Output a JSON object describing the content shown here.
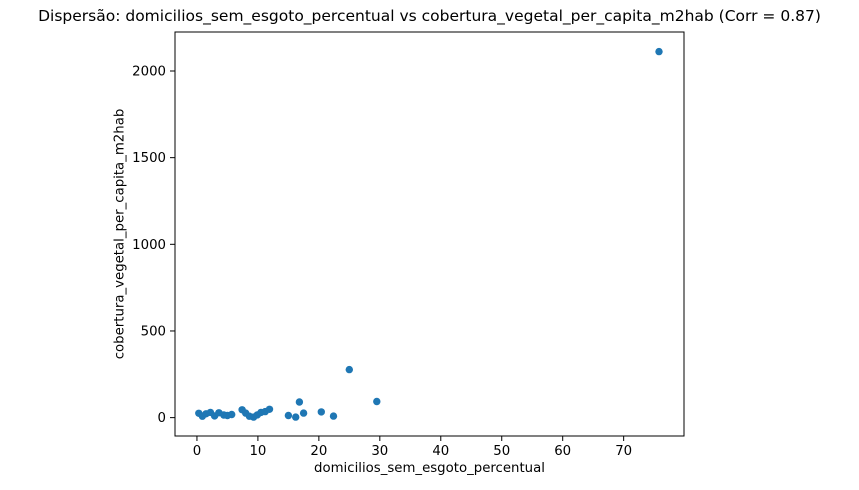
{
  "figure": {
    "background_color": "#ffffff",
    "text_color": "#000000",
    "spine_color": "#000000"
  },
  "chart_data": {
    "type": "scatter",
    "title": "Dispersão: domicilios_sem_esgoto_percentual vs cobertura_vegetal_per_capita_m2hab (Corr = 0.87)",
    "xlabel": "domicilios_sem_esgoto_percentual",
    "ylabel": "cobertura_vegetal_per_capita_m2hab",
    "correlation": 0.87,
    "marker_color": "#1f77b4",
    "grid": false,
    "legend": "none",
    "xlim": [
      -3.6,
      79.9
    ],
    "ylim": [
      -106,
      2225
    ],
    "x_ticks": [
      0,
      10,
      20,
      30,
      40,
      50,
      60,
      70
    ],
    "y_ticks": [
      0,
      500,
      1000,
      1500,
      2000
    ],
    "points": [
      [
        0.3,
        25
      ],
      [
        0.9,
        8
      ],
      [
        1.5,
        22
      ],
      [
        2.2,
        30
      ],
      [
        2.9,
        10
      ],
      [
        3.6,
        28
      ],
      [
        4.4,
        15
      ],
      [
        5.0,
        12
      ],
      [
        5.7,
        18
      ],
      [
        7.4,
        45
      ],
      [
        8.0,
        26
      ],
      [
        8.6,
        8
      ],
      [
        9.3,
        3
      ],
      [
        9.9,
        16
      ],
      [
        10.5,
        30
      ],
      [
        11.2,
        35
      ],
      [
        11.9,
        48
      ],
      [
        15.0,
        12
      ],
      [
        16.2,
        3
      ],
      [
        16.8,
        90
      ],
      [
        17.5,
        26
      ],
      [
        20.4,
        33
      ],
      [
        22.4,
        9
      ],
      [
        25.0,
        277
      ],
      [
        29.5,
        93
      ],
      [
        75.8,
        2112
      ]
    ]
  }
}
